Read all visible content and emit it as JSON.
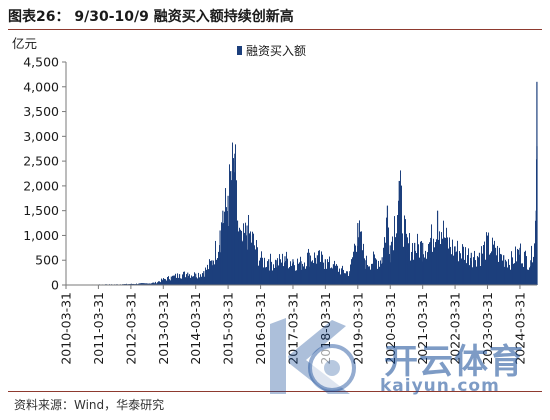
{
  "title": "图表26： 9/30-10/9 融资买入额持续创新高",
  "source": "资料来源：Wind，华泰研究",
  "watermark": {
    "cn": "开云体育",
    "en": "kaiyun.com"
  },
  "colors": {
    "bar": "#1c3f7c",
    "rule": "#8e3a2f",
    "axis": "#7a7a7a"
  },
  "chart_data": {
    "type": "bar",
    "title": "",
    "unit_label": "亿元",
    "legend": [
      "融资买入额"
    ],
    "legend_position": "top-right",
    "grid": false,
    "ylim": [
      0,
      4500
    ],
    "yticks": [
      0,
      500,
      1000,
      1500,
      2000,
      2500,
      3000,
      3500,
      4000,
      4500
    ],
    "ytick_labels": [
      "0",
      "500",
      "1,000",
      "1,500",
      "2,000",
      "2,500",
      "3,000",
      "3,500",
      "4,000",
      "4,500"
    ],
    "xtick_labels": [
      "2010-03-31",
      "2011-03-31",
      "2012-03-31",
      "2013-03-31",
      "2014-03-31",
      "2015-03-31",
      "2016-03-31",
      "2017-03-31",
      "2018-03-31",
      "2019-03-31",
      "2020-03-31",
      "2021-03-31",
      "2022-03-31",
      "2023-03-31",
      "2024-03-31"
    ],
    "x_range": [
      "2010-03-31",
      "2024-10-09"
    ],
    "series": [
      {
        "name": "融资买入额",
        "points": [
          [
            "2010-03-31",
            0
          ],
          [
            "2010-06-30",
            2
          ],
          [
            "2010-09-30",
            5
          ],
          [
            "2010-12-31",
            8
          ],
          [
            "2011-03-31",
            10
          ],
          [
            "2011-06-30",
            14
          ],
          [
            "2011-09-30",
            12
          ],
          [
            "2011-12-31",
            18
          ],
          [
            "2012-03-31",
            22
          ],
          [
            "2012-06-30",
            30
          ],
          [
            "2012-09-30",
            35
          ],
          [
            "2012-12-31",
            50
          ],
          [
            "2013-03-31",
            120
          ],
          [
            "2013-06-30",
            170
          ],
          [
            "2013-09-30",
            220
          ],
          [
            "2013-12-31",
            250
          ],
          [
            "2014-03-31",
            230
          ],
          [
            "2014-06-30",
            280
          ],
          [
            "2014-09-30",
            500
          ],
          [
            "2014-12-31",
            1100
          ],
          [
            "2015-01-31",
            1500
          ],
          [
            "2015-03-31",
            1800
          ],
          [
            "2015-04-30",
            2300
          ],
          [
            "2015-05-31",
            2500
          ],
          [
            "2015-06-15",
            2650
          ],
          [
            "2015-07-15",
            1300
          ],
          [
            "2015-08-31",
            900
          ],
          [
            "2015-10-31",
            1200
          ],
          [
            "2015-12-31",
            1000
          ],
          [
            "2016-03-31",
            550
          ],
          [
            "2016-06-30",
            520
          ],
          [
            "2016-09-30",
            500
          ],
          [
            "2016-12-31",
            580
          ],
          [
            "2017-03-31",
            520
          ],
          [
            "2017-06-30",
            480
          ],
          [
            "2017-09-30",
            650
          ],
          [
            "2017-12-31",
            600
          ],
          [
            "2018-03-31",
            520
          ],
          [
            "2018-06-30",
            420
          ],
          [
            "2018-09-30",
            320
          ],
          [
            "2018-12-31",
            280
          ],
          [
            "2019-03-31",
            1250
          ],
          [
            "2019-06-30",
            500
          ],
          [
            "2019-09-30",
            550
          ],
          [
            "2019-12-31",
            560
          ],
          [
            "2020-02-28",
            1600
          ],
          [
            "2020-03-31",
            800
          ],
          [
            "2020-07-10",
            2100
          ],
          [
            "2020-09-30",
            900
          ],
          [
            "2020-12-31",
            850
          ],
          [
            "2021-03-31",
            850
          ],
          [
            "2021-06-30",
            950
          ],
          [
            "2021-09-15",
            1500
          ],
          [
            "2021-12-31",
            950
          ],
          [
            "2022-03-31",
            780
          ],
          [
            "2022-06-30",
            750
          ],
          [
            "2022-09-30",
            650
          ],
          [
            "2022-12-31",
            650
          ],
          [
            "2023-03-31",
            900
          ],
          [
            "2023-06-30",
            750
          ],
          [
            "2023-09-30",
            600
          ],
          [
            "2023-12-31",
            550
          ],
          [
            "2024-03-31",
            750
          ],
          [
            "2024-05-31",
            600
          ],
          [
            "2024-07-31",
            500
          ],
          [
            "2024-09-30",
            1500
          ],
          [
            "2024-10-08",
            4100
          ],
          [
            "2024-10-09",
            2800
          ]
        ]
      }
    ]
  }
}
